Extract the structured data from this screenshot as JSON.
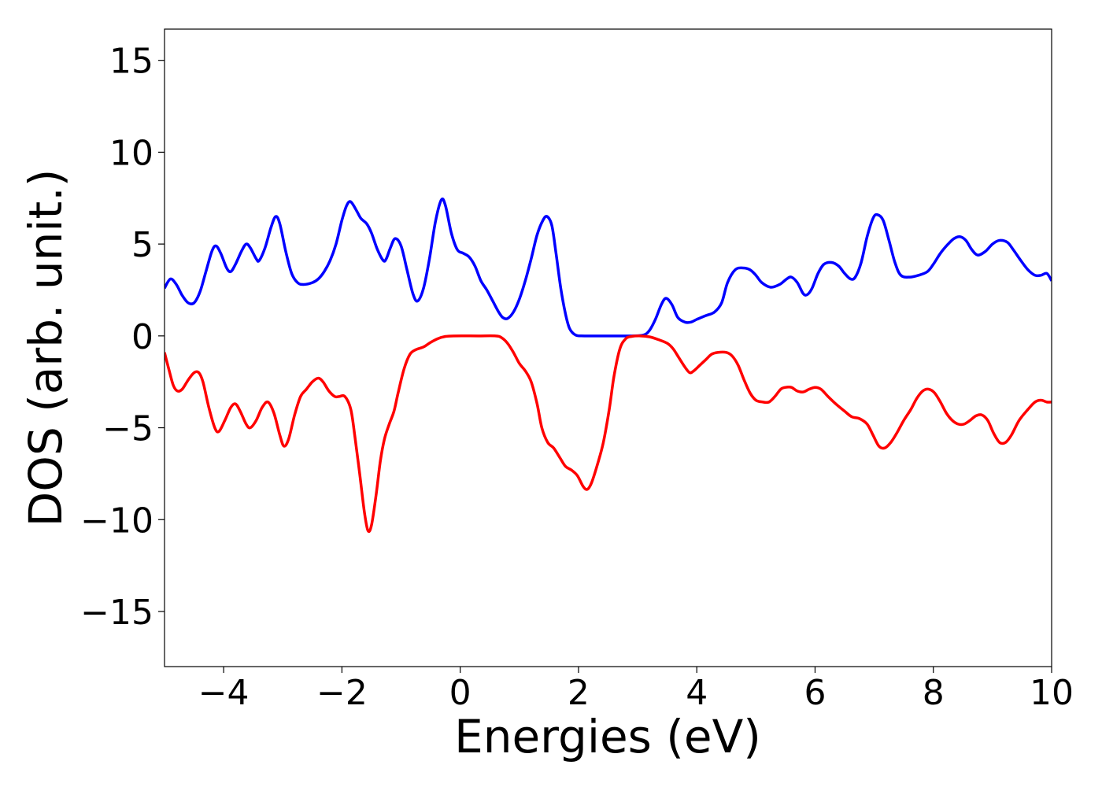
{
  "chart_data": {
    "type": "line",
    "title": "",
    "xlabel": "Energies (eV)",
    "ylabel": "DOS (arb. unit.)",
    "xlim": [
      -5,
      10
    ],
    "ylim": [
      -18,
      16.7
    ],
    "xticks": [
      -4,
      -2,
      0,
      2,
      4,
      6,
      8,
      10
    ],
    "yticks": [
      -15,
      -10,
      -5,
      0,
      5,
      10,
      15
    ],
    "xtick_labels": [
      "−4",
      "−2",
      "0",
      "2",
      "4",
      "6",
      "8",
      "10"
    ],
    "ytick_labels": [
      "−15",
      "−10",
      "−5",
      "0",
      "5",
      "10",
      "15"
    ],
    "grid": false,
    "legend": "none",
    "series": [
      {
        "color": "#0000ff",
        "points": [
          [
            -5.0,
            2.6
          ],
          [
            -4.9,
            3.1
          ],
          [
            -4.8,
            2.8
          ],
          [
            -4.7,
            2.2
          ],
          [
            -4.6,
            1.8
          ],
          [
            -4.5,
            1.8
          ],
          [
            -4.4,
            2.4
          ],
          [
            -4.3,
            3.5
          ],
          [
            -4.2,
            4.6
          ],
          [
            -4.13,
            4.9
          ],
          [
            -4.05,
            4.5
          ],
          [
            -3.95,
            3.7
          ],
          [
            -3.88,
            3.5
          ],
          [
            -3.8,
            3.9
          ],
          [
            -3.7,
            4.6
          ],
          [
            -3.62,
            5.0
          ],
          [
            -3.55,
            4.8
          ],
          [
            -3.45,
            4.2
          ],
          [
            -3.4,
            4.1
          ],
          [
            -3.3,
            4.8
          ],
          [
            -3.2,
            5.9
          ],
          [
            -3.12,
            6.5
          ],
          [
            -3.05,
            6.1
          ],
          [
            -2.95,
            4.6
          ],
          [
            -2.85,
            3.4
          ],
          [
            -2.75,
            2.9
          ],
          [
            -2.65,
            2.8
          ],
          [
            -2.5,
            2.9
          ],
          [
            -2.4,
            3.1
          ],
          [
            -2.3,
            3.5
          ],
          [
            -2.2,
            4.1
          ],
          [
            -2.1,
            5.0
          ],
          [
            -2.0,
            6.3
          ],
          [
            -1.92,
            7.1
          ],
          [
            -1.85,
            7.3
          ],
          [
            -1.75,
            6.8
          ],
          [
            -1.68,
            6.4
          ],
          [
            -1.58,
            6.1
          ],
          [
            -1.5,
            5.6
          ],
          [
            -1.4,
            4.7
          ],
          [
            -1.3,
            4.1
          ],
          [
            -1.25,
            4.2
          ],
          [
            -1.18,
            4.8
          ],
          [
            -1.1,
            5.3
          ],
          [
            -1.0,
            4.9
          ],
          [
            -0.9,
            3.6
          ],
          [
            -0.8,
            2.3
          ],
          [
            -0.72,
            1.9
          ],
          [
            -0.62,
            2.6
          ],
          [
            -0.52,
            4.2
          ],
          [
            -0.42,
            6.2
          ],
          [
            -0.32,
            7.4
          ],
          [
            -0.25,
            7.1
          ],
          [
            -0.15,
            5.6
          ],
          [
            -0.05,
            4.7
          ],
          [
            0.05,
            4.5
          ],
          [
            0.15,
            4.3
          ],
          [
            0.25,
            3.8
          ],
          [
            0.35,
            3.0
          ],
          [
            0.45,
            2.5
          ],
          [
            0.55,
            1.9
          ],
          [
            0.65,
            1.3
          ],
          [
            0.72,
            1.0
          ],
          [
            0.8,
            0.95
          ],
          [
            0.9,
            1.3
          ],
          [
            1.0,
            2.0
          ],
          [
            1.1,
            3.0
          ],
          [
            1.2,
            4.2
          ],
          [
            1.3,
            5.5
          ],
          [
            1.4,
            6.3
          ],
          [
            1.47,
            6.5
          ],
          [
            1.55,
            6.0
          ],
          [
            1.62,
            4.5
          ],
          [
            1.7,
            2.6
          ],
          [
            1.78,
            1.2
          ],
          [
            1.85,
            0.4
          ],
          [
            1.95,
            0.05
          ],
          [
            2.1,
            0.0
          ],
          [
            2.5,
            0.0
          ],
          [
            2.9,
            0.0
          ],
          [
            3.1,
            0.05
          ],
          [
            3.2,
            0.3
          ],
          [
            3.3,
            0.9
          ],
          [
            3.4,
            1.7
          ],
          [
            3.48,
            2.05
          ],
          [
            3.58,
            1.7
          ],
          [
            3.68,
            1.0
          ],
          [
            3.8,
            0.75
          ],
          [
            3.9,
            0.75
          ],
          [
            4.0,
            0.9
          ],
          [
            4.15,
            1.1
          ],
          [
            4.3,
            1.3
          ],
          [
            4.42,
            1.8
          ],
          [
            4.52,
            2.9
          ],
          [
            4.65,
            3.6
          ],
          [
            4.78,
            3.7
          ],
          [
            4.9,
            3.6
          ],
          [
            5.0,
            3.3
          ],
          [
            5.1,
            2.9
          ],
          [
            5.25,
            2.65
          ],
          [
            5.4,
            2.8
          ],
          [
            5.52,
            3.1
          ],
          [
            5.6,
            3.2
          ],
          [
            5.7,
            2.9
          ],
          [
            5.8,
            2.3
          ],
          [
            5.87,
            2.25
          ],
          [
            5.95,
            2.6
          ],
          [
            6.05,
            3.4
          ],
          [
            6.15,
            3.9
          ],
          [
            6.28,
            4.0
          ],
          [
            6.4,
            3.8
          ],
          [
            6.5,
            3.4
          ],
          [
            6.6,
            3.1
          ],
          [
            6.68,
            3.2
          ],
          [
            6.78,
            4.0
          ],
          [
            6.88,
            5.4
          ],
          [
            6.98,
            6.4
          ],
          [
            7.05,
            6.6
          ],
          [
            7.15,
            6.3
          ],
          [
            7.25,
            5.2
          ],
          [
            7.35,
            4.0
          ],
          [
            7.45,
            3.3
          ],
          [
            7.6,
            3.2
          ],
          [
            7.75,
            3.3
          ],
          [
            7.9,
            3.5
          ],
          [
            8.0,
            3.9
          ],
          [
            8.12,
            4.5
          ],
          [
            8.25,
            5.0
          ],
          [
            8.35,
            5.3
          ],
          [
            8.45,
            5.4
          ],
          [
            8.55,
            5.2
          ],
          [
            8.65,
            4.7
          ],
          [
            8.75,
            4.4
          ],
          [
            8.88,
            4.6
          ],
          [
            9.0,
            5.0
          ],
          [
            9.12,
            5.2
          ],
          [
            9.25,
            5.1
          ],
          [
            9.35,
            4.7
          ],
          [
            9.48,
            4.1
          ],
          [
            9.6,
            3.6
          ],
          [
            9.72,
            3.3
          ],
          [
            9.82,
            3.3
          ],
          [
            9.92,
            3.4
          ],
          [
            10.0,
            3.0
          ]
        ]
      },
      {
        "color": "#ff0000",
        "points": [
          [
            -5.0,
            -0.9
          ],
          [
            -4.92,
            -1.9
          ],
          [
            -4.85,
            -2.7
          ],
          [
            -4.78,
            -3.0
          ],
          [
            -4.7,
            -2.9
          ],
          [
            -4.6,
            -2.4
          ],
          [
            -4.5,
            -2.0
          ],
          [
            -4.42,
            -2.0
          ],
          [
            -4.35,
            -2.5
          ],
          [
            -4.25,
            -3.9
          ],
          [
            -4.15,
            -5.0
          ],
          [
            -4.08,
            -5.2
          ],
          [
            -3.98,
            -4.6
          ],
          [
            -3.88,
            -3.9
          ],
          [
            -3.8,
            -3.7
          ],
          [
            -3.72,
            -4.1
          ],
          [
            -3.62,
            -4.8
          ],
          [
            -3.55,
            -5.0
          ],
          [
            -3.45,
            -4.6
          ],
          [
            -3.35,
            -3.9
          ],
          [
            -3.25,
            -3.6
          ],
          [
            -3.15,
            -4.2
          ],
          [
            -3.05,
            -5.4
          ],
          [
            -2.98,
            -6.0
          ],
          [
            -2.9,
            -5.6
          ],
          [
            -2.8,
            -4.3
          ],
          [
            -2.7,
            -3.3
          ],
          [
            -2.6,
            -2.9
          ],
          [
            -2.5,
            -2.5
          ],
          [
            -2.4,
            -2.3
          ],
          [
            -2.32,
            -2.5
          ],
          [
            -2.22,
            -3.0
          ],
          [
            -2.12,
            -3.3
          ],
          [
            -2.05,
            -3.3
          ],
          [
            -1.95,
            -3.3
          ],
          [
            -1.85,
            -4.0
          ],
          [
            -1.78,
            -5.5
          ],
          [
            -1.7,
            -7.5
          ],
          [
            -1.62,
            -9.6
          ],
          [
            -1.56,
            -10.6
          ],
          [
            -1.5,
            -10.3
          ],
          [
            -1.42,
            -8.6
          ],
          [
            -1.35,
            -6.8
          ],
          [
            -1.28,
            -5.6
          ],
          [
            -1.2,
            -4.8
          ],
          [
            -1.12,
            -4.1
          ],
          [
            -1.05,
            -3.1
          ],
          [
            -0.95,
            -1.8
          ],
          [
            -0.85,
            -1.0
          ],
          [
            -0.75,
            -0.75
          ],
          [
            -0.62,
            -0.6
          ],
          [
            -0.5,
            -0.35
          ],
          [
            -0.38,
            -0.15
          ],
          [
            -0.25,
            -0.03
          ],
          [
            -0.1,
            0.0
          ],
          [
            0.3,
            0.0
          ],
          [
            0.6,
            0.0
          ],
          [
            0.7,
            -0.1
          ],
          [
            0.8,
            -0.4
          ],
          [
            0.9,
            -0.9
          ],
          [
            1.0,
            -1.5
          ],
          [
            1.1,
            -1.9
          ],
          [
            1.2,
            -2.5
          ],
          [
            1.3,
            -3.7
          ],
          [
            1.38,
            -5.0
          ],
          [
            1.48,
            -5.8
          ],
          [
            1.58,
            -6.1
          ],
          [
            1.68,
            -6.6
          ],
          [
            1.78,
            -7.1
          ],
          [
            1.88,
            -7.3
          ],
          [
            1.98,
            -7.6
          ],
          [
            2.08,
            -8.2
          ],
          [
            2.15,
            -8.35
          ],
          [
            2.22,
            -8.0
          ],
          [
            2.32,
            -7.0
          ],
          [
            2.42,
            -5.8
          ],
          [
            2.52,
            -4.0
          ],
          [
            2.6,
            -2.2
          ],
          [
            2.7,
            -0.7
          ],
          [
            2.8,
            -0.15
          ],
          [
            2.9,
            -0.03
          ],
          [
            3.05,
            0.0
          ],
          [
            3.2,
            -0.05
          ],
          [
            3.35,
            -0.2
          ],
          [
            3.5,
            -0.4
          ],
          [
            3.6,
            -0.7
          ],
          [
            3.7,
            -1.2
          ],
          [
            3.8,
            -1.7
          ],
          [
            3.88,
            -2.0
          ],
          [
            3.95,
            -1.9
          ],
          [
            4.05,
            -1.6
          ],
          [
            4.15,
            -1.3
          ],
          [
            4.25,
            -1.0
          ],
          [
            4.35,
            -0.9
          ],
          [
            4.5,
            -0.9
          ],
          [
            4.6,
            -1.1
          ],
          [
            4.7,
            -1.6
          ],
          [
            4.8,
            -2.4
          ],
          [
            4.9,
            -3.1
          ],
          [
            5.0,
            -3.5
          ],
          [
            5.12,
            -3.6
          ],
          [
            5.22,
            -3.6
          ],
          [
            5.32,
            -3.3
          ],
          [
            5.42,
            -2.9
          ],
          [
            5.5,
            -2.8
          ],
          [
            5.6,
            -2.8
          ],
          [
            5.7,
            -3.0
          ],
          [
            5.8,
            -3.05
          ],
          [
            5.9,
            -2.9
          ],
          [
            6.0,
            -2.8
          ],
          [
            6.1,
            -2.9
          ],
          [
            6.22,
            -3.3
          ],
          [
            6.35,
            -3.7
          ],
          [
            6.5,
            -4.1
          ],
          [
            6.62,
            -4.4
          ],
          [
            6.75,
            -4.5
          ],
          [
            6.88,
            -4.8
          ],
          [
            6.98,
            -5.4
          ],
          [
            7.08,
            -6.0
          ],
          [
            7.18,
            -6.1
          ],
          [
            7.28,
            -5.8
          ],
          [
            7.38,
            -5.3
          ],
          [
            7.5,
            -4.6
          ],
          [
            7.62,
            -4.0
          ],
          [
            7.72,
            -3.4
          ],
          [
            7.82,
            -3.0
          ],
          [
            7.92,
            -2.9
          ],
          [
            8.02,
            -3.1
          ],
          [
            8.12,
            -3.6
          ],
          [
            8.22,
            -4.2
          ],
          [
            8.32,
            -4.6
          ],
          [
            8.42,
            -4.8
          ],
          [
            8.52,
            -4.8
          ],
          [
            8.62,
            -4.6
          ],
          [
            8.72,
            -4.35
          ],
          [
            8.82,
            -4.3
          ],
          [
            8.92,
            -4.6
          ],
          [
            9.02,
            -5.3
          ],
          [
            9.12,
            -5.8
          ],
          [
            9.22,
            -5.8
          ],
          [
            9.32,
            -5.4
          ],
          [
            9.45,
            -4.6
          ],
          [
            9.6,
            -4.0
          ],
          [
            9.72,
            -3.6
          ],
          [
            9.82,
            -3.5
          ],
          [
            9.92,
            -3.6
          ],
          [
            10.0,
            -3.6
          ]
        ]
      }
    ]
  }
}
